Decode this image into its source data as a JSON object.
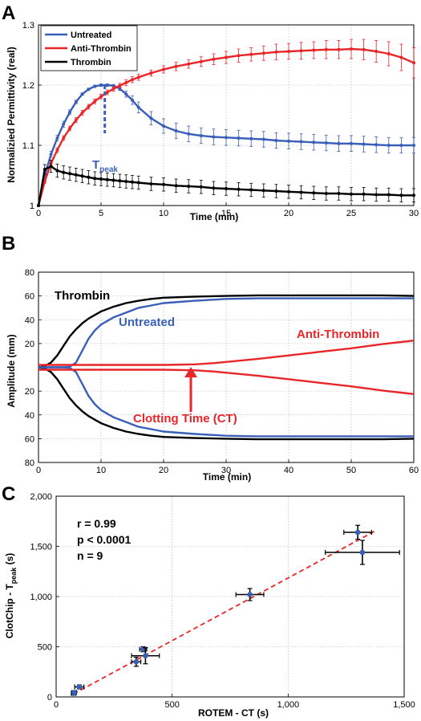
{
  "chart_data": [
    {
      "panel_label": "A",
      "type": "line",
      "xlabel": "Time (min)",
      "ylabel": "Normalizied Permittivity (real)",
      "xlim": [
        0,
        30
      ],
      "ylim": [
        1.0,
        1.3
      ],
      "xticks": [
        "0",
        "5",
        "10",
        "15",
        "20",
        "25",
        "30"
      ],
      "yticks": [
        "1",
        "1.1",
        "1.2",
        "1.3"
      ],
      "grid": true,
      "legend_position": "top-left",
      "annotation": {
        "text": "T",
        "subscript": "peak",
        "x": 5.3,
        "y_top": 1.2,
        "y_bottom": 1.12
      },
      "series": [
        {
          "name": "Untreated",
          "color": "#3a5fb8",
          "x": [
            0,
            0.5,
            1,
            1.5,
            2,
            2.5,
            3,
            3.5,
            4,
            4.5,
            5,
            5.5,
            6,
            6.5,
            7,
            7.5,
            8,
            9,
            10,
            11,
            12,
            13,
            14,
            15,
            16,
            17,
            18,
            19,
            20,
            21,
            22,
            23,
            24,
            25,
            26,
            27,
            28,
            29,
            30
          ],
          "y": [
            1.0,
            1.05,
            1.085,
            1.112,
            1.135,
            1.155,
            1.172,
            1.185,
            1.193,
            1.198,
            1.2,
            1.2,
            1.199,
            1.194,
            1.185,
            1.175,
            1.163,
            1.145,
            1.132,
            1.124,
            1.119,
            1.116,
            1.114,
            1.113,
            1.112,
            1.111,
            1.11,
            1.108,
            1.107,
            1.106,
            1.105,
            1.104,
            1.103,
            1.103,
            1.102,
            1.101,
            1.1,
            1.1,
            1.1
          ],
          "err": [
            0,
            0.004,
            0.005,
            0.005,
            0.005,
            0.004,
            0.003,
            0.002,
            0.002,
            0.002,
            0.002,
            0.002,
            0.002,
            0.003,
            0.005,
            0.007,
            0.009,
            0.011,
            0.012,
            0.013,
            0.013,
            0.013,
            0.013,
            0.013,
            0.013,
            0.013,
            0.013,
            0.013,
            0.013,
            0.013,
            0.013,
            0.013,
            0.013,
            0.013,
            0.013,
            0.013,
            0.013,
            0.013,
            0.013
          ]
        },
        {
          "name": "Anti-Thrombin",
          "color": "#e8262a",
          "x": [
            0,
            0.5,
            1,
            1.5,
            2,
            2.5,
            3,
            3.5,
            4,
            4.5,
            5,
            5.5,
            6,
            6.5,
            7,
            7.5,
            8,
            9,
            10,
            11,
            12,
            13,
            14,
            15,
            16,
            17,
            18,
            19,
            20,
            21,
            22,
            23,
            24,
            25,
            26,
            27,
            28,
            29,
            30
          ],
          "y": [
            1.0,
            1.04,
            1.07,
            1.092,
            1.112,
            1.128,
            1.142,
            1.154,
            1.164,
            1.173,
            1.181,
            1.188,
            1.194,
            1.199,
            1.204,
            1.209,
            1.213,
            1.22,
            1.226,
            1.231,
            1.235,
            1.239,
            1.243,
            1.246,
            1.249,
            1.251,
            1.253,
            1.255,
            1.256,
            1.257,
            1.258,
            1.259,
            1.259,
            1.26,
            1.259,
            1.256,
            1.252,
            1.246,
            1.237
          ],
          "err": [
            0,
            0.003,
            0.004,
            0.004,
            0.004,
            0.004,
            0.004,
            0.004,
            0.004,
            0.004,
            0.004,
            0.004,
            0.004,
            0.004,
            0.005,
            0.005,
            0.005,
            0.005,
            0.006,
            0.007,
            0.007,
            0.008,
            0.009,
            0.01,
            0.011,
            0.011,
            0.012,
            0.013,
            0.013,
            0.014,
            0.014,
            0.015,
            0.015,
            0.016,
            0.017,
            0.018,
            0.02,
            0.022,
            0.025
          ]
        },
        {
          "name": "Thrombin",
          "color": "#000000",
          "x": [
            0,
            0.5,
            1,
            1.5,
            2,
            2.5,
            3,
            3.5,
            4,
            4.5,
            5,
            5.5,
            6,
            6.5,
            7,
            7.5,
            8,
            9,
            10,
            11,
            12,
            13,
            14,
            15,
            16,
            17,
            18,
            19,
            20,
            21,
            22,
            23,
            24,
            25,
            26,
            27,
            28,
            29,
            30
          ],
          "y": [
            1.0,
            1.06,
            1.065,
            1.058,
            1.055,
            1.053,
            1.051,
            1.049,
            1.047,
            1.045,
            1.044,
            1.043,
            1.042,
            1.041,
            1.04,
            1.039,
            1.038,
            1.036,
            1.035,
            1.033,
            1.032,
            1.031,
            1.029,
            1.028,
            1.027,
            1.026,
            1.025,
            1.024,
            1.023,
            1.022,
            1.021,
            1.02,
            1.02,
            1.019,
            1.019,
            1.018,
            1.018,
            1.017,
            1.017
          ],
          "err": [
            0,
            0.008,
            0.01,
            0.011,
            0.011,
            0.011,
            0.011,
            0.011,
            0.011,
            0.011,
            0.011,
            0.011,
            0.011,
            0.011,
            0.011,
            0.011,
            0.011,
            0.011,
            0.011,
            0.011,
            0.011,
            0.011,
            0.011,
            0.011,
            0.011,
            0.011,
            0.011,
            0.011,
            0.011,
            0.011,
            0.011,
            0.011,
            0.011,
            0.011,
            0.011,
            0.011,
            0.011,
            0.011,
            0.011
          ]
        }
      ]
    },
    {
      "panel_label": "B",
      "type": "line",
      "xlabel": "Time (min)",
      "ylabel": "Amplitude (mm)",
      "xlim": [
        0,
        60
      ],
      "ylim": [
        -80,
        80
      ],
      "xticks": [
        "0",
        "10",
        "20",
        "30",
        "40",
        "50",
        "60"
      ],
      "yticks": [
        "80",
        "60",
        "40",
        "20",
        "20",
        "40",
        "60",
        "80"
      ],
      "ytick_values": [
        80,
        60,
        40,
        20,
        -20,
        -40,
        -60,
        -80
      ],
      "grid": true,
      "series": [
        {
          "name": "Thrombin",
          "color": "#000000",
          "x": [
            0,
            1,
            2,
            3,
            4,
            5,
            6,
            7,
            8,
            9,
            10,
            12,
            14,
            16,
            18,
            20,
            25,
            30,
            35,
            40,
            45,
            50,
            55,
            60
          ],
          "y": [
            0,
            1,
            4,
            10,
            18,
            26,
            32,
            37,
            41,
            44,
            47,
            51,
            54,
            56,
            57.5,
            58.5,
            59.5,
            60,
            60.5,
            60.5,
            60.5,
            60.5,
            60.5,
            60
          ]
        },
        {
          "name": "Untreated",
          "color": "#3a5fb8",
          "x": [
            0,
            2,
            4,
            5,
            6,
            7,
            8,
            9,
            10,
            12,
            14,
            16,
            18,
            20,
            25,
            30,
            35,
            40,
            45,
            50,
            55,
            60
          ],
          "y": [
            0,
            0,
            0,
            0.5,
            4,
            14,
            24,
            31,
            36,
            42,
            46,
            50,
            52,
            54,
            56,
            57.5,
            58,
            58,
            58,
            58,
            58,
            58
          ]
        },
        {
          "name": "Anti-Thrombin",
          "color": "#e8262a",
          "x": [
            0,
            5,
            10,
            15,
            20,
            25,
            28,
            30,
            35,
            40,
            45,
            50,
            55,
            60
          ],
          "y": [
            0,
            0,
            0,
            0,
            0,
            0.5,
            1.5,
            2.5,
            5,
            8,
            11,
            14,
            17.5,
            20.5
          ]
        }
      ],
      "annotations": [
        {
          "text": "Thrombin",
          "color": "#000000"
        },
        {
          "text": "Untreated",
          "color": "#3a5fb8"
        },
        {
          "text": "Anti-Thrombin",
          "color": "#e8262a"
        },
        {
          "text": "Clotting Time (CT)",
          "color": "#e8262a",
          "x": 25
        }
      ]
    },
    {
      "panel_label": "C",
      "type": "scatter",
      "xlabel": "ROTEM - CT (s)",
      "ylabel": "ClotChip - T",
      "ylabel_subscript": "peak",
      "ylabel_suffix": " (s)",
      "xlim": [
        0,
        1500
      ],
      "ylim": [
        0,
        2000
      ],
      "xticks": [
        "0",
        "500",
        "1,000",
        "1,500"
      ],
      "yticks": [
        "0",
        "500",
        "1,000",
        "1,500",
        "2,000"
      ],
      "grid": true,
      "stats": [
        "r = 0.99",
        "p < 0.0001",
        "n = 9"
      ],
      "fit_line": {
        "x": [
          75,
          1380
        ],
        "y": [
          30,
          1660
        ],
        "color": "#e8262a"
      },
      "points": [
        {
          "x": 75,
          "y": 35,
          "xerr": 10,
          "yerr": 15
        },
        {
          "x": 78,
          "y": 45,
          "xerr": 10,
          "yerr": 15
        },
        {
          "x": 100,
          "y": 100,
          "xerr": 20,
          "yerr": 20
        },
        {
          "x": 345,
          "y": 350,
          "xerr": 20,
          "yerr": 45
        },
        {
          "x": 375,
          "y": 475,
          "xerr": 15,
          "yerr": 25
        },
        {
          "x": 385,
          "y": 410,
          "xerr": 60,
          "yerr": 80
        },
        {
          "x": 835,
          "y": 1020,
          "xerr": 60,
          "yerr": 60
        },
        {
          "x": 1300,
          "y": 1640,
          "xerr": 60,
          "yerr": 70
        },
        {
          "x": 1320,
          "y": 1440,
          "xerr": 160,
          "yerr": 120
        }
      ]
    }
  ]
}
